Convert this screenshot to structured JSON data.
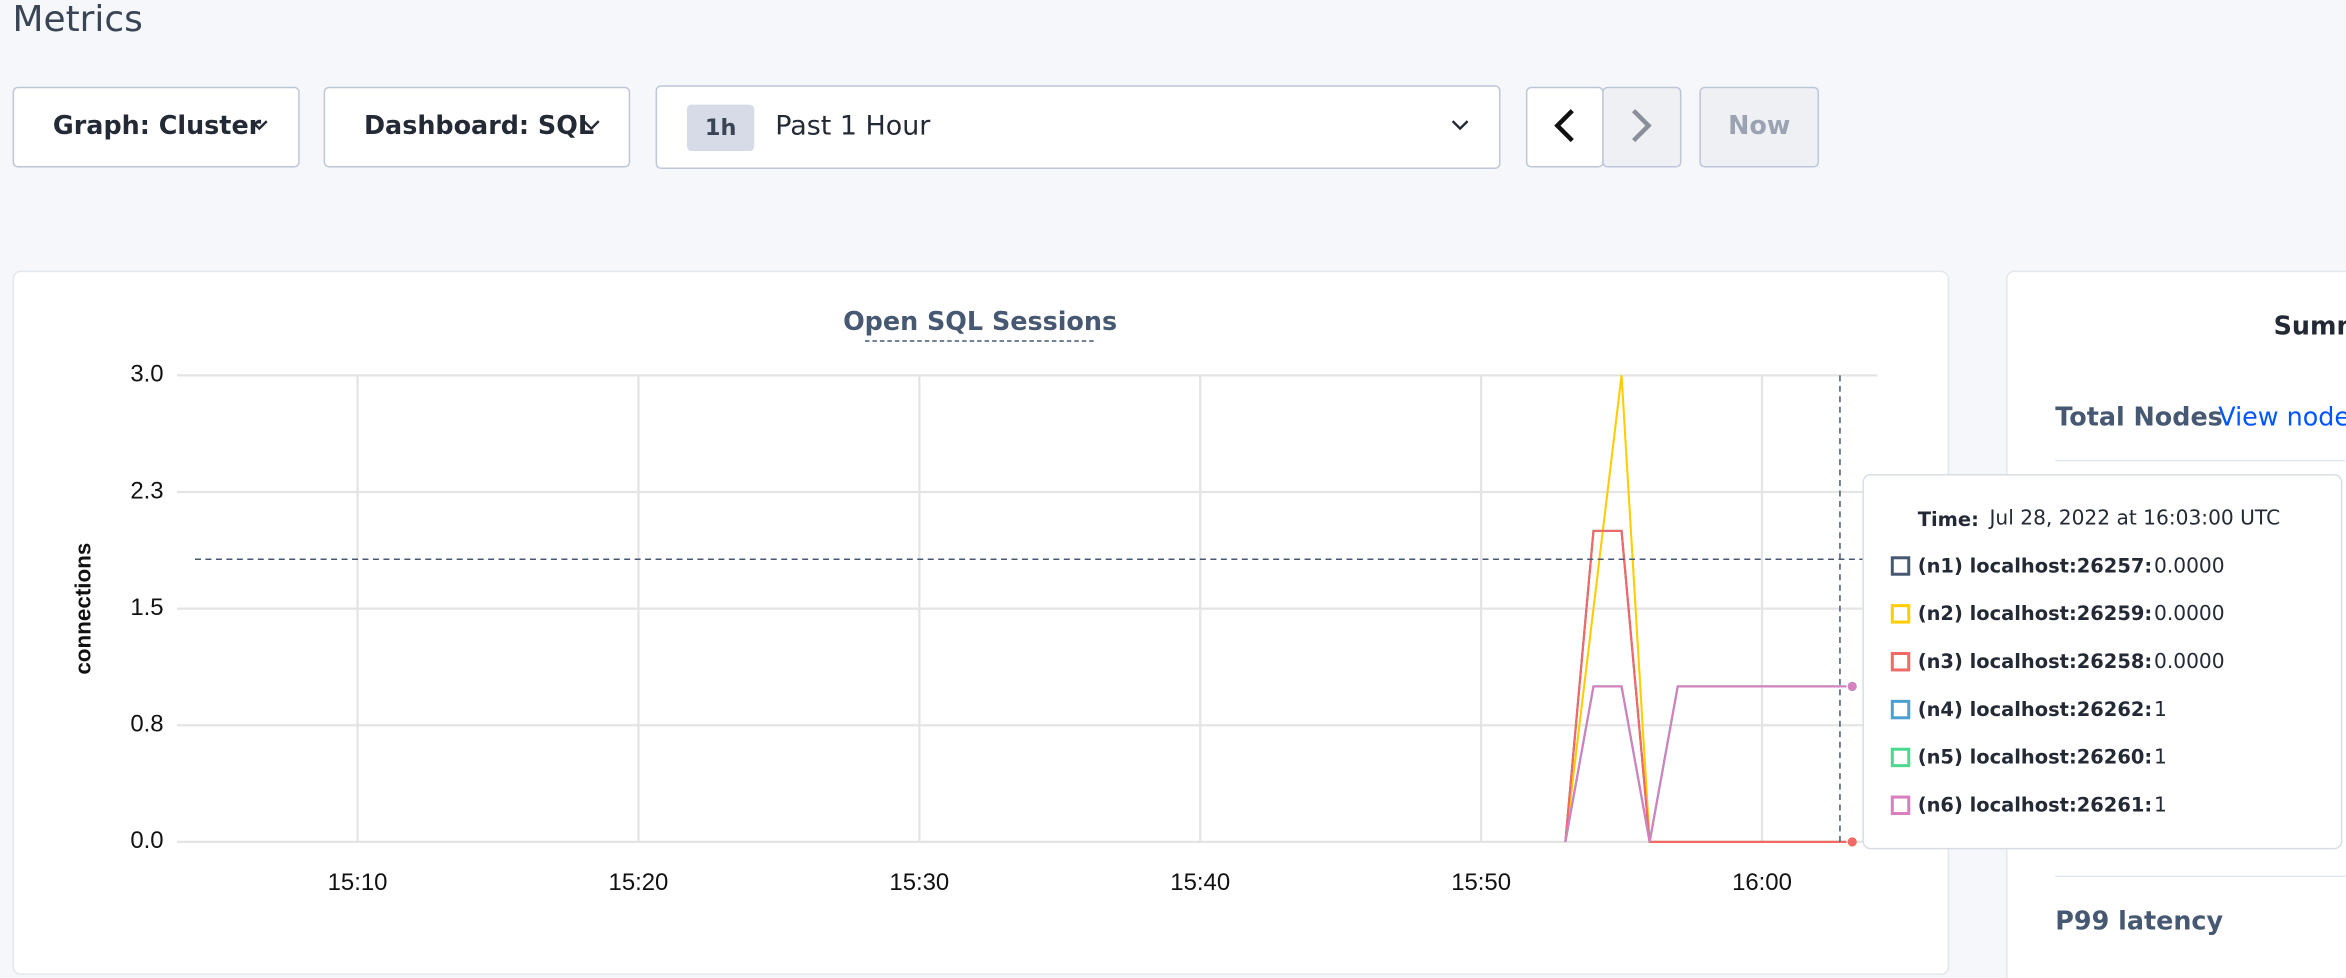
{
  "header": {
    "title": "Metrics"
  },
  "controls": {
    "graph": "Graph: Cluster",
    "dashboard": "Dashboard: SQL",
    "range_badge": "1h",
    "range": "Past 1 Hour",
    "now": "Now"
  },
  "chart_data": {
    "type": "line",
    "title": "Open SQL Sessions",
    "y_label": "connections",
    "x": [
      "15:53",
      "15:54",
      "15:55",
      "15:56",
      "15:57",
      "15:58",
      "15:59",
      "16:00",
      "16:01",
      "16:02",
      "16:03"
    ],
    "xlim": [
      "15:04",
      "16:04"
    ],
    "xticks": [
      "15:10",
      "15:20",
      "15:30",
      "15:40",
      "15:50",
      "16:00"
    ],
    "ylim": [
      0,
      3
    ],
    "yticks": [
      {
        "value": 0,
        "label": "0.0"
      },
      {
        "value": 0.75,
        "label": "0.8"
      },
      1.5,
      {
        "value": 2.25,
        "label": "2.3"
      },
      {
        "value": 3,
        "label": "3.0"
      }
    ],
    "grid": true,
    "series": [
      {
        "name": "(n1) localhost:26257:",
        "color": "#475872",
        "values": [
          0,
          2,
          2,
          0,
          0,
          0,
          0,
          0,
          0,
          0,
          0
        ]
      },
      {
        "name": "(n2) localhost:26259:",
        "color": "#ffcd02",
        "values": [
          0,
          1.5,
          3,
          0,
          0,
          0,
          0,
          0,
          0,
          0,
          0
        ]
      },
      {
        "name": "(n3) localhost:26258:",
        "color": "#f16969",
        "values": [
          0,
          2,
          2,
          0,
          0,
          0,
          0,
          0,
          0,
          0,
          0
        ]
      },
      {
        "name": "(n4) localhost:26262:",
        "color": "#4e9fd1",
        "values": [
          0,
          1,
          1,
          0,
          1,
          1,
          1,
          1,
          1,
          1,
          1
        ]
      },
      {
        "name": "(n5) localhost:26260:",
        "color": "#49d990",
        "values": [
          0,
          1,
          1,
          0,
          1,
          1,
          1,
          1,
          1,
          1,
          1
        ]
      },
      {
        "name": "(n6) localhost:26261:",
        "color": "#d77fbf",
        "values": [
          0,
          1,
          1,
          0,
          1,
          1,
          1,
          1,
          1,
          1,
          1
        ]
      }
    ],
    "tooltip": {
      "label": "Time:",
      "time": "Jul 28, 2022 at 16:03:00 UTC",
      "values": [
        "0.0000",
        "0.0000",
        "0.0000",
        "1",
        "1",
        "1"
      ]
    }
  },
  "summary": {
    "title": "Summ",
    "total_nodes": "Total Nodes",
    "view_nodes": "View nodes",
    "p99": "P99 latency"
  }
}
